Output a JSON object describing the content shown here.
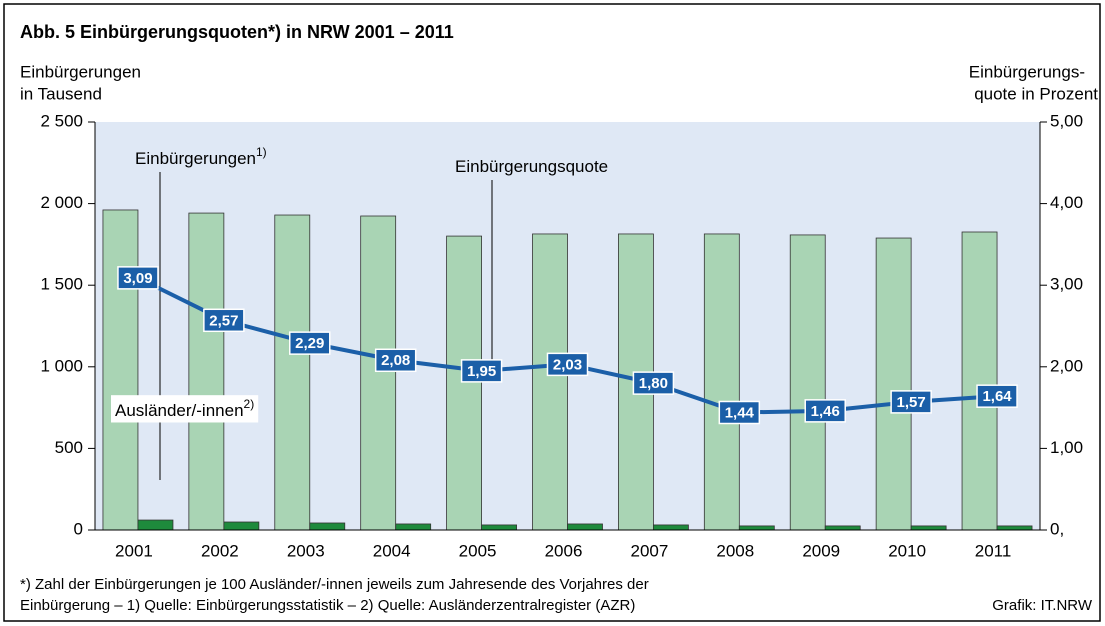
{
  "chart_data": {
    "type": "bar",
    "title": "Abb. 5   Einbürgerungsquoten*) in NRW 2001 – 2011",
    "y_label": [
      "Einbürgerungen",
      "in Tausend"
    ],
    "y2_label": [
      "Einbürgerungs-",
      "quote in Prozent"
    ],
    "categories": [
      "2001",
      "2002",
      "2003",
      "2004",
      "2005",
      "2006",
      "2007",
      "2008",
      "2009",
      "2010",
      "2011"
    ],
    "series": [
      {
        "name": "Ausländer/-innen",
        "note": "2)",
        "type": "bar",
        "axis": "y",
        "color": "#a9d4b4",
        "values": [
          1961,
          1942,
          1930,
          1924,
          1801,
          1814,
          1814,
          1814,
          1808,
          1789,
          1826
        ]
      },
      {
        "name": "Einbürgerungen",
        "note": "1)",
        "type": "bar",
        "axis": "y",
        "color": "#1e8a3c",
        "values": [
          61,
          49,
          43,
          37,
          31,
          37,
          31,
          25,
          25,
          25,
          25
        ]
      },
      {
        "name": "Einbürgerungsquote",
        "type": "line",
        "axis": "y2",
        "color": "#1b5fa8",
        "values": [
          3.09,
          2.57,
          2.29,
          2.08,
          1.95,
          2.03,
          1.8,
          1.44,
          1.46,
          1.57,
          1.64
        ],
        "value_labels": [
          "3,09",
          "2,57",
          "2,29",
          "2,08",
          "1,95",
          "2,03",
          "1,80",
          "1,44",
          "1,46",
          "1,57",
          "1,64"
        ]
      }
    ],
    "ylim": [
      0,
      2500
    ],
    "yticks": [
      0,
      500,
      {
        "value": 1000,
        "label": "1 000"
      },
      {
        "value": 1500,
        "label": "1 500"
      },
      {
        "value": 2000,
        "label": "2 000"
      },
      {
        "value": 2500,
        "label": "2 500"
      }
    ],
    "y2lim": [
      0,
      5
    ],
    "y2ticks": [
      {
        "value": 0,
        "label": "0,"
      },
      {
        "value": 1,
        "label": "1,00"
      },
      {
        "value": 2,
        "label": "2,00"
      },
      {
        "value": 3,
        "label": "3,00"
      },
      {
        "value": 4,
        "label": "4,00"
      },
      {
        "value": 5,
        "label": "5,00"
      }
    ],
    "footnote": [
      "*) Zahl der Einbürgerungen je 100 Ausländer/-innen jeweils zum Jahresende des Vorjahres der",
      "Einbürgerung – 1) Quelle: Einbürgerungsstatistik – 2) Quelle: Ausländerzentralregister (AZR)"
    ],
    "source": "Grafik: IT.NRW"
  }
}
